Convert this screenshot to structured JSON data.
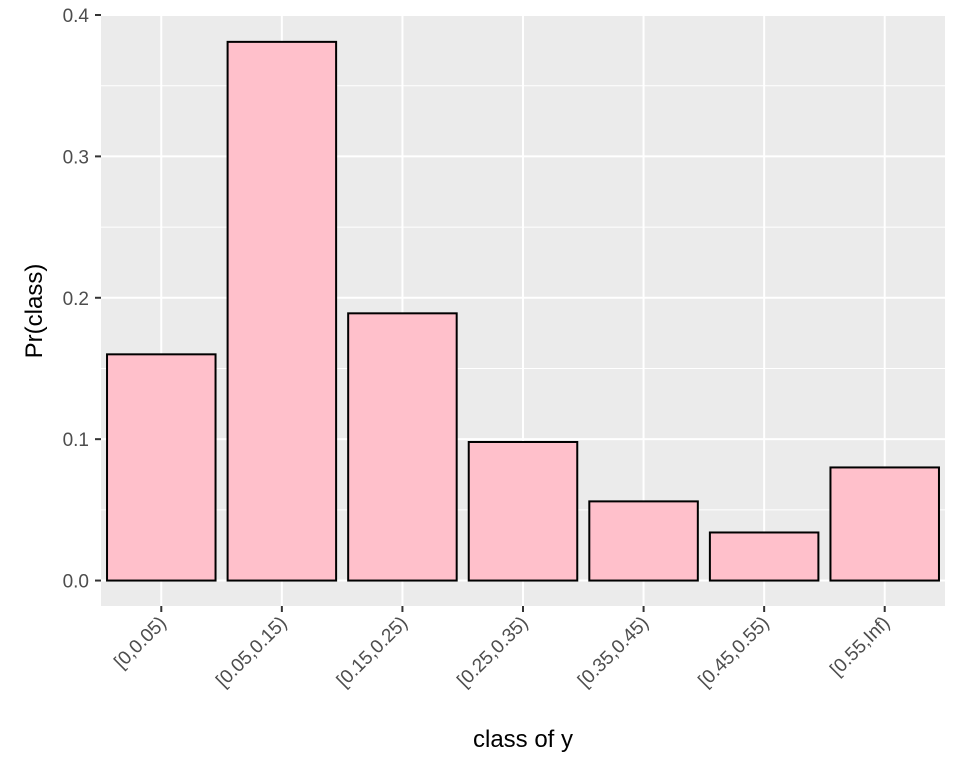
{
  "chart_data": {
    "type": "bar",
    "title": "",
    "xlabel": "class of y",
    "ylabel": "Pr(class)",
    "categories": [
      "[0,0.05)",
      "[0.05,0.15)",
      "[0.15,0.25)",
      "[0.25,0.35)",
      "[0.35,0.45)",
      "[0.45,0.55)",
      "[0.55,Inf)"
    ],
    "values": [
      0.16,
      0.381,
      0.189,
      0.098,
      0.056,
      0.034,
      0.08
    ],
    "ylim": [
      -0.018,
      0.4
    ],
    "yticks": [
      "0.0",
      "0.1",
      "0.2",
      "0.3",
      "0.4"
    ],
    "ytick_values": [
      0.0,
      0.1,
      0.2,
      0.3,
      0.4
    ],
    "grid": true,
    "legend": "none",
    "colors": {
      "bar_fill": "#FFC0CB",
      "bar_stroke": "#000000",
      "panel_background": "#EBEBEB",
      "grid": "#FFFFFF",
      "tick_text": "#4D4D4D",
      "tick_mark": "#333333"
    }
  }
}
